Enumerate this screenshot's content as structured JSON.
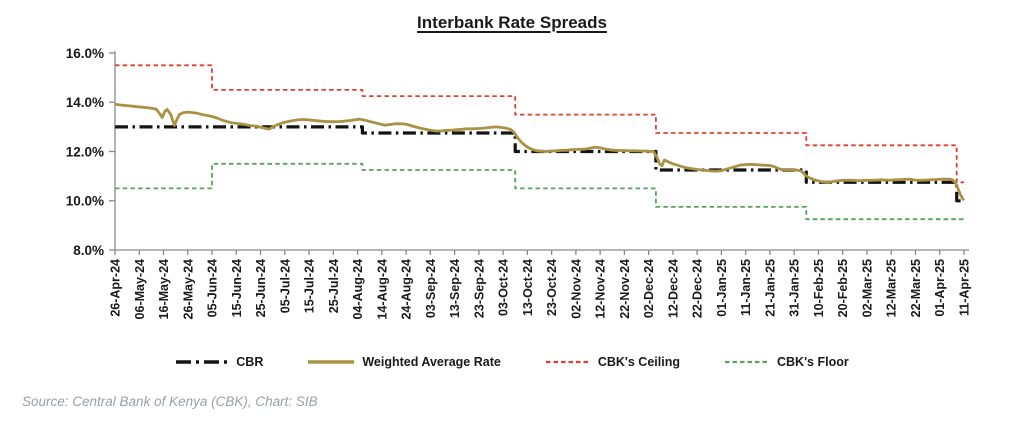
{
  "title": "Interbank Rate Spreads",
  "source_note": "Source: Central Bank of Kenya (CBK), Chart: SIB",
  "legend": [
    {
      "label": "CBR"
    },
    {
      "label": "Weighted Average Rate"
    },
    {
      "label": "CBK's Ceiling"
    },
    {
      "label": "CBK's Floor"
    }
  ],
  "colors": {
    "cbr": "#141414",
    "war": "#AA9245",
    "ceiling": "#E2402F",
    "floor": "#56A556",
    "axis": "#8a8a8a",
    "tick_text": "#1a1a1a",
    "source_text": "#9aa0a8"
  },
  "chart_data": {
    "type": "line",
    "title": "Interbank Rate Spreads",
    "xlabel": "",
    "ylabel": "",
    "grid": false,
    "legend_position": "bottom",
    "ylim": [
      8,
      16
    ],
    "y_ticks": [
      {
        "value": 16,
        "label": "16.0%"
      },
      {
        "value": 14,
        "label": "14.0%"
      },
      {
        "value": 12,
        "label": "12.0%"
      },
      {
        "value": 10,
        "label": "10.0%"
      },
      {
        "value": 8,
        "label": "8.0%"
      }
    ],
    "x_unit": "days since 26-Apr-24, one tick per 10 days",
    "x_max": 350,
    "x_tick_labels": [
      "26-Apr-24",
      "06-May-24",
      "16-May-24",
      "26-May-24",
      "05-Jun-24",
      "15-Jun-24",
      "25-Jun-24",
      "05-Jul-24",
      "15-Jul-24",
      "25-Jul-24",
      "04-Aug-24",
      "14-Aug-24",
      "24-Aug-24",
      "03-Sep-24",
      "13-Sep-24",
      "23-Sep-24",
      "03-Oct-24",
      "13-Oct-24",
      "23-Oct-24",
      "02-Nov-24",
      "12-Nov-24",
      "22-Nov-24",
      "02-Dec-24",
      "12-Dec-24",
      "22-Dec-24",
      "01-Jan-25",
      "11-Jan-25",
      "21-Jan-25",
      "31-Jan-25",
      "10-Feb-25",
      "20-Feb-25",
      "02-Mar-25",
      "12-Mar-25",
      "22-Mar-25",
      "01-Apr-25",
      "11-Apr-25"
    ],
    "series": [
      {
        "name": "CBK's Ceiling",
        "key": "ceiling",
        "style": "dashed",
        "width": 1.8,
        "points": [
          [
            0,
            15.5
          ],
          [
            40,
            15.5
          ],
          [
            40,
            14.5
          ],
          [
            102,
            14.5
          ],
          [
            102,
            14.25
          ],
          [
            165,
            14.25
          ],
          [
            165,
            13.5
          ],
          [
            223,
            13.5
          ],
          [
            223,
            12.75
          ],
          [
            285,
            12.75
          ],
          [
            285,
            12.25
          ],
          [
            347,
            12.25
          ],
          [
            347,
            10.75
          ],
          [
            350,
            10.75
          ]
        ]
      },
      {
        "name": "CBK's Floor",
        "key": "floor",
        "style": "dashed",
        "width": 1.8,
        "points": [
          [
            0,
            10.5
          ],
          [
            40,
            10.5
          ],
          [
            40,
            11.5
          ],
          [
            102,
            11.5
          ],
          [
            102,
            11.25
          ],
          [
            165,
            11.25
          ],
          [
            165,
            10.5
          ],
          [
            223,
            10.5
          ],
          [
            223,
            9.75
          ],
          [
            285,
            9.75
          ],
          [
            285,
            9.25
          ],
          [
            350,
            9.25
          ]
        ]
      },
      {
        "name": "CBR",
        "key": "cbr",
        "style": "dashdot",
        "width": 3.2,
        "points": [
          [
            0,
            13.0
          ],
          [
            102,
            13.0
          ],
          [
            102,
            12.75
          ],
          [
            165,
            12.75
          ],
          [
            165,
            12.0
          ],
          [
            223,
            12.0
          ],
          [
            223,
            11.25
          ],
          [
            285,
            11.25
          ],
          [
            285,
            10.75
          ],
          [
            347,
            10.75
          ],
          [
            347,
            10.0
          ],
          [
            350,
            10.0
          ]
        ]
      },
      {
        "name": "Weighted Average Rate",
        "key": "war",
        "style": "solid",
        "width": 2.8,
        "points": [
          [
            0,
            13.92
          ],
          [
            3,
            13.88
          ],
          [
            6,
            13.85
          ],
          [
            9,
            13.82
          ],
          [
            12,
            13.79
          ],
          [
            15,
            13.76
          ],
          [
            17,
            13.72
          ],
          [
            18.5,
            13.52
          ],
          [
            19.5,
            13.38
          ],
          [
            20.5,
            13.62
          ],
          [
            21.5,
            13.71
          ],
          [
            23,
            13.5
          ],
          [
            24.5,
            13.06
          ],
          [
            25.5,
            13.3
          ],
          [
            26.5,
            13.5
          ],
          [
            28,
            13.57
          ],
          [
            30,
            13.6
          ],
          [
            32,
            13.58
          ],
          [
            34,
            13.55
          ],
          [
            36,
            13.5
          ],
          [
            38,
            13.46
          ],
          [
            40,
            13.42
          ],
          [
            42,
            13.36
          ],
          [
            44,
            13.28
          ],
          [
            46,
            13.22
          ],
          [
            48,
            13.17
          ],
          [
            50,
            13.14
          ],
          [
            52,
            13.12
          ],
          [
            54,
            13.09
          ],
          [
            56,
            13.05
          ],
          [
            58,
            13.03
          ],
          [
            60,
            12.99
          ],
          [
            62,
            12.94
          ],
          [
            63.5,
            12.91
          ],
          [
            65,
            13.0
          ],
          [
            67,
            13.09
          ],
          [
            69,
            13.16
          ],
          [
            71,
            13.21
          ],
          [
            73,
            13.25
          ],
          [
            75,
            13.28
          ],
          [
            77,
            13.3
          ],
          [
            79,
            13.29
          ],
          [
            81,
            13.27
          ],
          [
            83,
            13.25
          ],
          [
            85,
            13.23
          ],
          [
            87,
            13.22
          ],
          [
            89,
            13.21
          ],
          [
            91,
            13.21
          ],
          [
            93,
            13.22
          ],
          [
            95,
            13.24
          ],
          [
            97,
            13.26
          ],
          [
            99,
            13.29
          ],
          [
            101,
            13.31
          ],
          [
            103,
            13.27
          ],
          [
            105,
            13.22
          ],
          [
            107,
            13.17
          ],
          [
            109,
            13.12
          ],
          [
            111,
            13.07
          ],
          [
            113,
            13.09
          ],
          [
            115,
            13.12
          ],
          [
            117,
            13.13
          ],
          [
            119,
            13.12
          ],
          [
            121,
            13.08
          ],
          [
            123,
            13.02
          ],
          [
            125,
            12.97
          ],
          [
            127,
            12.92
          ],
          [
            129,
            12.88
          ],
          [
            131,
            12.85
          ],
          [
            133,
            12.83
          ],
          [
            135,
            12.84
          ],
          [
            137,
            12.86
          ],
          [
            139,
            12.87
          ],
          [
            141,
            12.89
          ],
          [
            143,
            12.9
          ],
          [
            145,
            12.92
          ],
          [
            147,
            12.92
          ],
          [
            149,
            12.93
          ],
          [
            151,
            12.94
          ],
          [
            153,
            12.96
          ],
          [
            155,
            12.98
          ],
          [
            157,
            13.0
          ],
          [
            159,
            12.98
          ],
          [
            161,
            12.95
          ],
          [
            163,
            12.9
          ],
          [
            164.5,
            12.78
          ],
          [
            166,
            12.55
          ],
          [
            167.5,
            12.38
          ],
          [
            169,
            12.25
          ],
          [
            170.5,
            12.15
          ],
          [
            172,
            12.08
          ],
          [
            174,
            12.03
          ],
          [
            176,
            12.01
          ],
          [
            178,
            12.0
          ],
          [
            180,
            12.02
          ],
          [
            182,
            12.03
          ],
          [
            184,
            12.05
          ],
          [
            186,
            12.05
          ],
          [
            188,
            12.07
          ],
          [
            190,
            12.08
          ],
          [
            192,
            12.09
          ],
          [
            194,
            12.1
          ],
          [
            196,
            12.14
          ],
          [
            198,
            12.18
          ],
          [
            200,
            12.15
          ],
          [
            202,
            12.1
          ],
          [
            204,
            12.07
          ],
          [
            206,
            12.05
          ],
          [
            208,
            12.04
          ],
          [
            210,
            12.04
          ],
          [
            212,
            12.03
          ],
          [
            214,
            12.03
          ],
          [
            216,
            12.02
          ],
          [
            218,
            12.02
          ],
          [
            220,
            12.01
          ],
          [
            222,
            12.0
          ],
          [
            223.5,
            11.75
          ],
          [
            224.5,
            11.5
          ],
          [
            225.5,
            11.42
          ],
          [
            226.5,
            11.66
          ],
          [
            228,
            11.58
          ],
          [
            230,
            11.5
          ],
          [
            232,
            11.44
          ],
          [
            234,
            11.38
          ],
          [
            236,
            11.33
          ],
          [
            238,
            11.3
          ],
          [
            240,
            11.27
          ],
          [
            242,
            11.25
          ],
          [
            244,
            11.23
          ],
          [
            246,
            11.21
          ],
          [
            248,
            11.2
          ],
          [
            250,
            11.22
          ],
          [
            252,
            11.28
          ],
          [
            254,
            11.34
          ],
          [
            256,
            11.4
          ],
          [
            258,
            11.45
          ],
          [
            260,
            11.47
          ],
          [
            262,
            11.48
          ],
          [
            264,
            11.47
          ],
          [
            266,
            11.45
          ],
          [
            268,
            11.44
          ],
          [
            270,
            11.43
          ],
          [
            272,
            11.38
          ],
          [
            273.5,
            11.3
          ],
          [
            275,
            11.27
          ],
          [
            277,
            11.26
          ],
          [
            279,
            11.26
          ],
          [
            281,
            11.25
          ],
          [
            283,
            11.2
          ],
          [
            284.5,
            11.05
          ],
          [
            286,
            10.94
          ],
          [
            288,
            10.86
          ],
          [
            290,
            10.8
          ],
          [
            292,
            10.76
          ],
          [
            294,
            10.74
          ],
          [
            296,
            10.78
          ],
          [
            298,
            10.81
          ],
          [
            300,
            10.83
          ],
          [
            302,
            10.84
          ],
          [
            304,
            10.83
          ],
          [
            306,
            10.82
          ],
          [
            308,
            10.82
          ],
          [
            310,
            10.83
          ],
          [
            312,
            10.83
          ],
          [
            314,
            10.84
          ],
          [
            316,
            10.85
          ],
          [
            318,
            10.84
          ],
          [
            320,
            10.84
          ],
          [
            322,
            10.85
          ],
          [
            324,
            10.86
          ],
          [
            326,
            10.87
          ],
          [
            328,
            10.87
          ],
          [
            330,
            10.84
          ],
          [
            332,
            10.83
          ],
          [
            334,
            10.84
          ],
          [
            336,
            10.85
          ],
          [
            338,
            10.86
          ],
          [
            340,
            10.87
          ],
          [
            342,
            10.88
          ],
          [
            344,
            10.88
          ],
          [
            345.5,
            10.84
          ],
          [
            346.5,
            10.72
          ],
          [
            347.5,
            10.5
          ],
          [
            348.5,
            10.25
          ],
          [
            349.5,
            10.08
          ],
          [
            350,
            10.02
          ]
        ]
      }
    ]
  }
}
